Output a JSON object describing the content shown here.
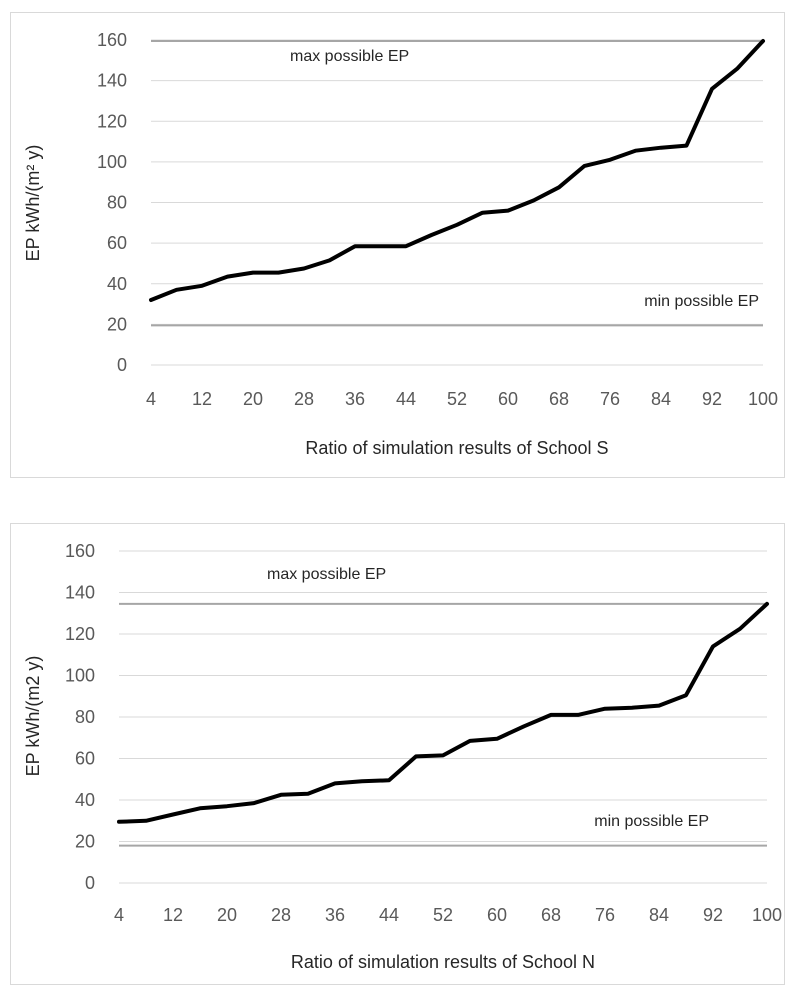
{
  "chart_data": [
    {
      "type": "line",
      "xlabel": "Ratio of simulation results of School S",
      "ylabel": "EP kWh/(m² y)",
      "ylim": [
        0,
        160
      ],
      "yticks": [
        0,
        20,
        40,
        60,
        80,
        100,
        120,
        140,
        160
      ],
      "xtick_labels": [
        "4",
        "12",
        "20",
        "28",
        "36",
        "44",
        "52",
        "60",
        "68",
        "76",
        "84",
        "92",
        "100"
      ],
      "grid": true,
      "x": [
        4,
        8,
        12,
        16,
        20,
        24,
        28,
        32,
        36,
        40,
        44,
        48,
        52,
        56,
        60,
        64,
        68,
        72,
        76,
        80,
        84,
        88,
        92,
        96,
        100
      ],
      "series": [
        {
          "values": [
            32,
            37,
            39,
            43.5,
            45.5,
            45.5,
            47.5,
            51.5,
            58.5,
            58.5,
            58.5,
            64,
            69,
            75,
            76,
            81,
            87.5,
            98,
            101,
            105.5,
            107,
            108,
            136,
            146,
            159.5
          ]
        }
      ],
      "reference_lines": [
        {
          "label": "max possible EP",
          "value": 159.5
        },
        {
          "label": "min possible EP",
          "value": 19.5
        }
      ]
    },
    {
      "type": "line",
      "xlabel": "Ratio of simulation results of School N",
      "ylabel": "EP kWh/(m2 y)",
      "ylim": [
        0,
        160
      ],
      "yticks": [
        0,
        20,
        40,
        60,
        80,
        100,
        120,
        140,
        160
      ],
      "xtick_labels": [
        "4",
        "12",
        "20",
        "28",
        "36",
        "44",
        "52",
        "60",
        "68",
        "76",
        "84",
        "92",
        "100"
      ],
      "grid": true,
      "x": [
        4,
        8,
        12,
        16,
        20,
        24,
        28,
        32,
        36,
        40,
        44,
        48,
        52,
        56,
        60,
        64,
        68,
        72,
        76,
        80,
        84,
        88,
        92,
        96,
        100
      ],
      "series": [
        {
          "values": [
            29.5,
            30,
            33,
            36,
            37,
            38.5,
            42.5,
            43,
            48,
            49,
            49.5,
            61,
            61.5,
            68.5,
            69.5,
            75.5,
            81,
            81,
            84,
            84.5,
            85.5,
            90.5,
            114,
            122.5,
            134.5
          ]
        }
      ],
      "reference_lines": [
        {
          "label": "max possible EP",
          "value": 134.5
        },
        {
          "label": "min possible EP",
          "value": 18
        }
      ]
    }
  ],
  "colors": {
    "series": "#000000",
    "reference": "#a6a6a6",
    "grid": "#d9d9d9",
    "tick": "#595959"
  }
}
